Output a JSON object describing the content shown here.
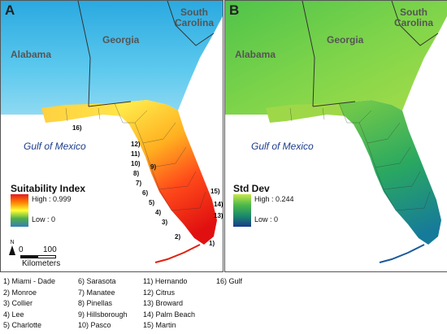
{
  "panels": [
    {
      "letter": "A",
      "states": {
        "alabama": "Alabama",
        "georgia": "Georgia",
        "south_carolina_line1": "South",
        "south_carolina_line2": "Carolina"
      },
      "gulf": "Gulf of Mexico",
      "legend": {
        "title": "Suitability Index",
        "high": "High : 0.999",
        "low": "Low : 0"
      },
      "colors": {
        "ramp": [
          "#e41a1c",
          "#ff7f00",
          "#ffff33",
          "#4daf4a",
          "#377eb8"
        ],
        "background": "#2fb8e6"
      }
    },
    {
      "letter": "B",
      "states": {
        "alabama": "Alabama",
        "georgia": "Georgia",
        "south_carolina_line1": "South",
        "south_carolina_line2": "Carolina"
      },
      "gulf": "Gulf of Mexico",
      "legend": {
        "title": "Std Dev",
        "high": "High : 0.244",
        "low": "Low : 0"
      },
      "colors": {
        "ramp": [
          "#c7e84a",
          "#4cb84a",
          "#1a8a6b",
          "#1a3a8a"
        ],
        "background": "#6fd04a"
      }
    }
  ],
  "county_markers": [
    "1)",
    "2)",
    "3)",
    "4)",
    "5)",
    "6)",
    "7)",
    "8)",
    "9)",
    "10)",
    "11)",
    "12)",
    "13)",
    "14)",
    "15)",
    "16)"
  ],
  "scale": {
    "zero": "0",
    "value": "100",
    "unit": "Kilometers",
    "north": "N"
  },
  "county_key": [
    [
      "1) Miami - Dade",
      "2) Monroe",
      "3) Collier",
      "4) Lee",
      "5) Charlotte"
    ],
    [
      "6) Sarasota",
      "7) Manatee",
      "8) Pinellas",
      "9) Hillsborough",
      "10) Pasco"
    ],
    [
      "11) Hernando",
      "12) Citrus",
      "13) Broward",
      "14) Palm Beach",
      "15) Martin"
    ],
    [
      "16) Gulf"
    ]
  ]
}
